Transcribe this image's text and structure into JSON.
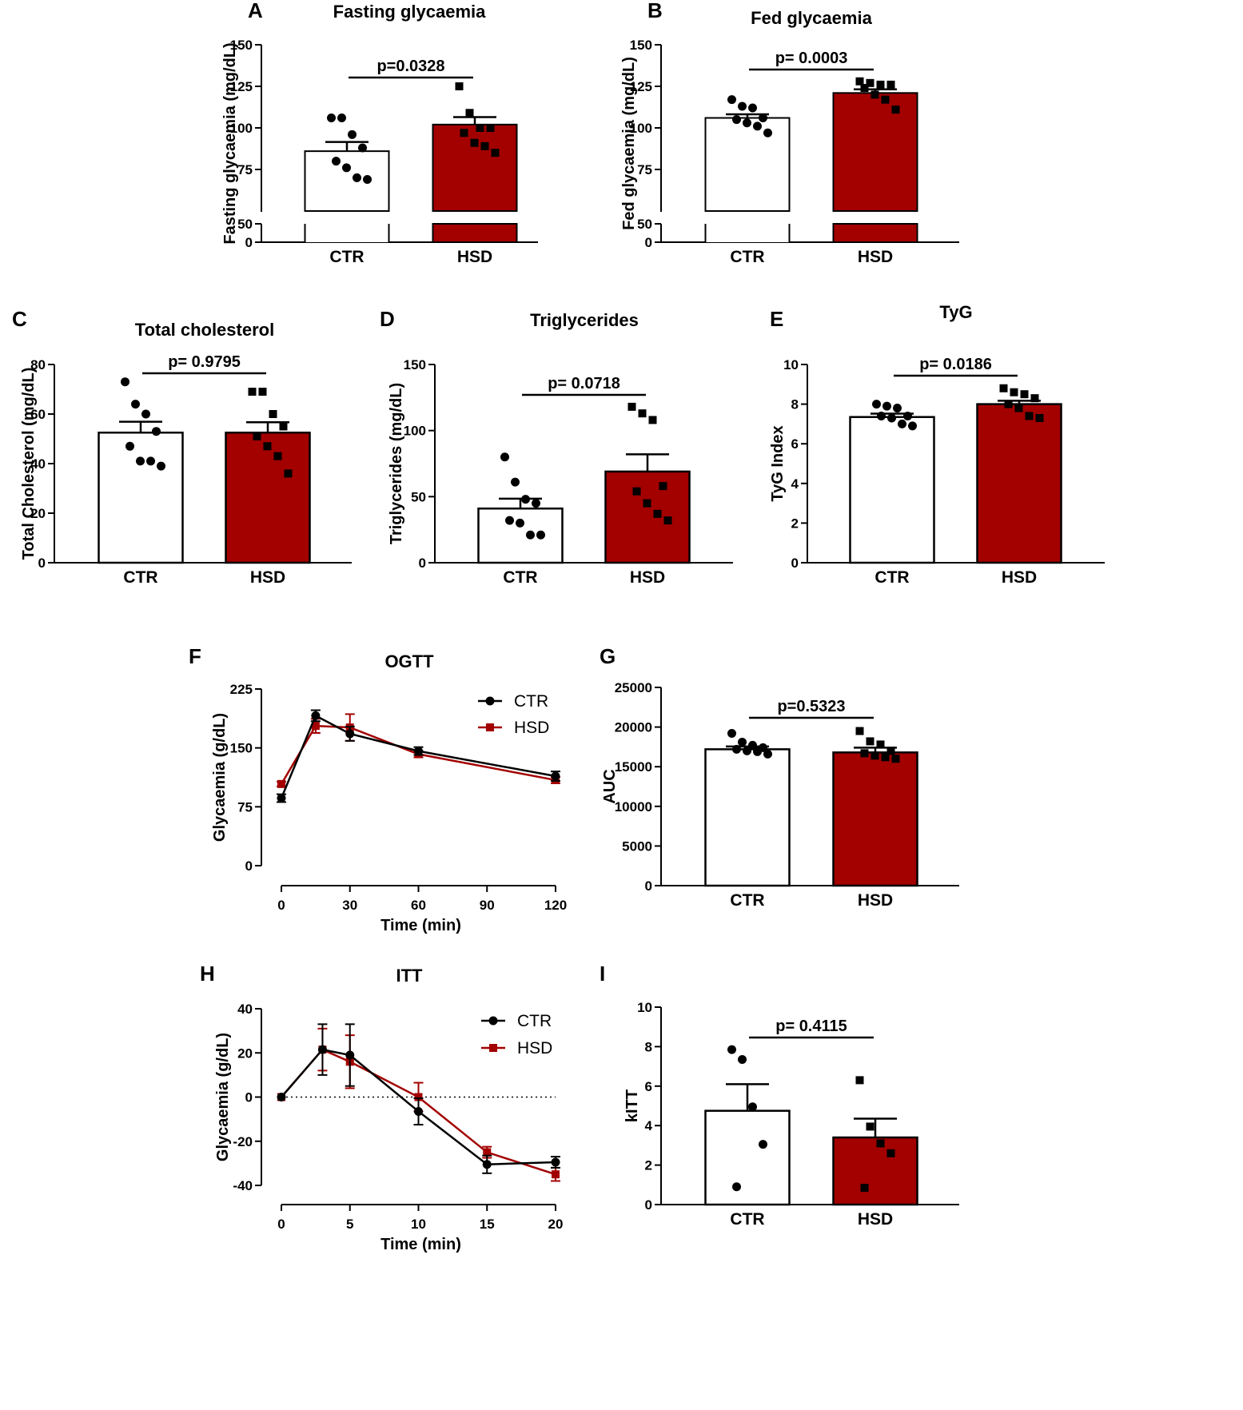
{
  "colors": {
    "ctr": "#000000",
    "hsd": "#a30000",
    "ctr_fill": "#ffffff",
    "hsd_fill": "#a30000"
  },
  "chart_data": [
    {
      "id": "A",
      "panel_label": "A",
      "type": "bar",
      "title": "Fasting glycaemia",
      "ylabel": "Fasting glycaemia (mg/dL)",
      "xlabel": "",
      "categories": [
        "CTR",
        "HSD"
      ],
      "ylim": [
        0,
        150
      ],
      "axis_break": [
        0,
        50
      ],
      "yticks": [
        0,
        50,
        75,
        100,
        125,
        150
      ],
      "ytick_labels": [
        "0",
        "50",
        "75",
        "100",
        "125",
        "150"
      ],
      "means": [
        86,
        102
      ],
      "sem": [
        5.5,
        4.5
      ],
      "points": [
        [
          106,
          106,
          96,
          88,
          80,
          76,
          70,
          69
        ],
        [
          125,
          109,
          100,
          100,
          97,
          91,
          89,
          85
        ]
      ],
      "pvalue": "p=0.0328"
    },
    {
      "id": "B",
      "panel_label": "B",
      "type": "bar",
      "title": "Fed glycaemia",
      "ylabel": "Fed glycaemia (mg/dL)",
      "xlabel": "",
      "categories": [
        "CTR",
        "HSD"
      ],
      "ylim": [
        0,
        150
      ],
      "axis_break": [
        0,
        50
      ],
      "yticks": [
        0,
        50,
        75,
        100,
        125,
        150
      ],
      "ytick_labels": [
        "0",
        "50",
        "75",
        "100",
        "125",
        "150"
      ],
      "means": [
        106,
        121
      ],
      "sem": [
        2.2,
        2.2
      ],
      "points": [
        [
          117,
          113,
          112,
          106,
          105,
          103,
          101,
          97
        ],
        [
          128,
          127,
          126,
          126,
          124,
          120,
          117,
          111
        ]
      ],
      "pvalue": "p= 0.0003"
    },
    {
      "id": "C",
      "panel_label": "C",
      "type": "bar",
      "title": "Total cholesterol",
      "ylabel": "Total Cholesterol (mg/dL)",
      "xlabel": "",
      "categories": [
        "CTR",
        "HSD"
      ],
      "ylim": [
        0,
        80
      ],
      "yticks": [
        0,
        20,
        40,
        60,
        80
      ],
      "ytick_labels": [
        "0",
        "20",
        "40",
        "60",
        "80"
      ],
      "means": [
        52.5,
        52.5
      ],
      "sem": [
        4.4,
        4.2
      ],
      "points": [
        [
          73,
          64,
          60,
          53,
          47,
          41,
          41,
          39
        ],
        [
          69,
          69,
          60,
          55,
          51,
          47,
          43,
          36
        ]
      ],
      "pvalue": "p= 0.9795"
    },
    {
      "id": "D",
      "panel_label": "D",
      "type": "bar",
      "title": "Triglycerides",
      "ylabel": "Triglycerides (mg/dL)",
      "xlabel": "",
      "categories": [
        "CTR",
        "HSD"
      ],
      "ylim": [
        0,
        150
      ],
      "yticks": [
        0,
        50,
        100,
        150
      ],
      "ytick_labels": [
        "0",
        "50",
        "100",
        "150"
      ],
      "means": [
        41,
        69
      ],
      "sem": [
        7.5,
        13
      ],
      "points": [
        [
          80,
          61,
          48,
          45,
          32,
          30,
          21,
          21
        ],
        [
          118,
          113,
          108,
          58,
          54,
          45,
          37,
          32
        ]
      ],
      "pvalue": "p= 0.0718"
    },
    {
      "id": "E",
      "panel_label": "E",
      "type": "bar",
      "title": "TyG",
      "ylabel": "TyG Index",
      "xlabel": "",
      "categories": [
        "CTR",
        "HSD"
      ],
      "ylim": [
        0,
        10
      ],
      "yticks": [
        0,
        2,
        4,
        6,
        8,
        10
      ],
      "ytick_labels": [
        "0",
        "2",
        "4",
        "6",
        "8",
        "10"
      ],
      "means": [
        7.35,
        8.0
      ],
      "sem": [
        0.17,
        0.17
      ],
      "points": [
        [
          8.0,
          7.9,
          7.8,
          7.4,
          7.4,
          7.3,
          7.0,
          6.9
        ],
        [
          8.8,
          8.6,
          8.5,
          8.3,
          8.0,
          7.8,
          7.4,
          7.3
        ]
      ],
      "pvalue": "p= 0.0186"
    },
    {
      "id": "F",
      "panel_label": "F",
      "type": "line",
      "title": "OGTT",
      "ylabel": "Glycaemia (g/dL)",
      "xlabel": "Time (min)",
      "x": [
        0,
        15,
        30,
        60,
        120
      ],
      "xlim": [
        0,
        120
      ],
      "ylim": [
        0,
        225
      ],
      "xticks": [
        0,
        30,
        60,
        90,
        120
      ],
      "xtick_labels": [
        "0",
        "30",
        "60",
        "90",
        "120"
      ],
      "yticks": [
        0,
        75,
        150,
        225
      ],
      "ytick_labels": [
        "0",
        "75",
        "150",
        "225"
      ],
      "series": [
        {
          "name": "CTR",
          "values": [
            86,
            191,
            168,
            146,
            114
          ],
          "errors": [
            5,
            7,
            9,
            5,
            6
          ]
        },
        {
          "name": "HSD",
          "values": [
            104,
            178,
            176,
            142,
            109
          ],
          "errors": [
            3,
            9,
            17,
            4,
            4
          ]
        }
      ],
      "legend": "top-right"
    },
    {
      "id": "G",
      "panel_label": "G",
      "type": "bar",
      "title": "",
      "ylabel": "AUC",
      "xlabel": "",
      "categories": [
        "CTR",
        "HSD"
      ],
      "ylim": [
        0,
        25000
      ],
      "yticks": [
        0,
        5000,
        10000,
        15000,
        20000,
        25000
      ],
      "ytick_labels": [
        "0",
        "5000",
        "10000",
        "15000",
        "20000",
        "25000"
      ],
      "means": [
        17200,
        16800
      ],
      "sem": [
        350,
        600
      ],
      "points": [
        [
          19200,
          18100,
          17700,
          17400,
          17200,
          17000,
          16900,
          16600
        ],
        [
          19500,
          18200,
          17800,
          17000,
          16700,
          16400,
          16200,
          16000
        ]
      ],
      "pvalue": "p=0.5323"
    },
    {
      "id": "H",
      "panel_label": "H",
      "type": "line",
      "title": "ITT",
      "ylabel": "Glycaemia (g/dL)",
      "xlabel": "Time (min)",
      "x": [
        0,
        3,
        5,
        10,
        15,
        20
      ],
      "xlim": [
        0,
        20
      ],
      "ylim": [
        -40,
        40
      ],
      "xticks": [
        0,
        5,
        10,
        15,
        20
      ],
      "xtick_labels": [
        "0",
        "5",
        "10",
        "15",
        "20"
      ],
      "yticks": [
        -40,
        -20,
        0,
        20,
        40
      ],
      "ytick_labels": [
        "-40",
        "-20",
        "0",
        "20",
        "40"
      ],
      "zero_line": true,
      "series": [
        {
          "name": "CTR",
          "values": [
            0,
            21.5,
            19,
            -6.5,
            -30.5,
            -29.5
          ],
          "errors": [
            0,
            11.5,
            14,
            6,
            4,
            2.5
          ]
        },
        {
          "name": "HSD",
          "values": [
            0,
            21.5,
            16,
            0,
            -25,
            -35
          ],
          "errors": [
            0,
            9.5,
            12,
            6.5,
            2.5,
            3
          ]
        }
      ],
      "legend": "top-right"
    },
    {
      "id": "I",
      "panel_label": "I",
      "type": "bar",
      "title": "",
      "ylabel": "kITT",
      "xlabel": "",
      "categories": [
        "CTR",
        "HSD"
      ],
      "ylim": [
        0,
        10
      ],
      "yticks": [
        0,
        2,
        4,
        6,
        8,
        10
      ],
      "ytick_labels": [
        "0",
        "2",
        "4",
        "6",
        "8",
        "10"
      ],
      "means": [
        4.75,
        3.4
      ],
      "sem": [
        1.35,
        0.95
      ],
      "points": [
        [
          7.85,
          7.35,
          4.95,
          3.05,
          0.9
        ],
        [
          6.3,
          3.95,
          3.1,
          2.6,
          0.85
        ]
      ],
      "pvalue": "p= 0.4115"
    }
  ]
}
